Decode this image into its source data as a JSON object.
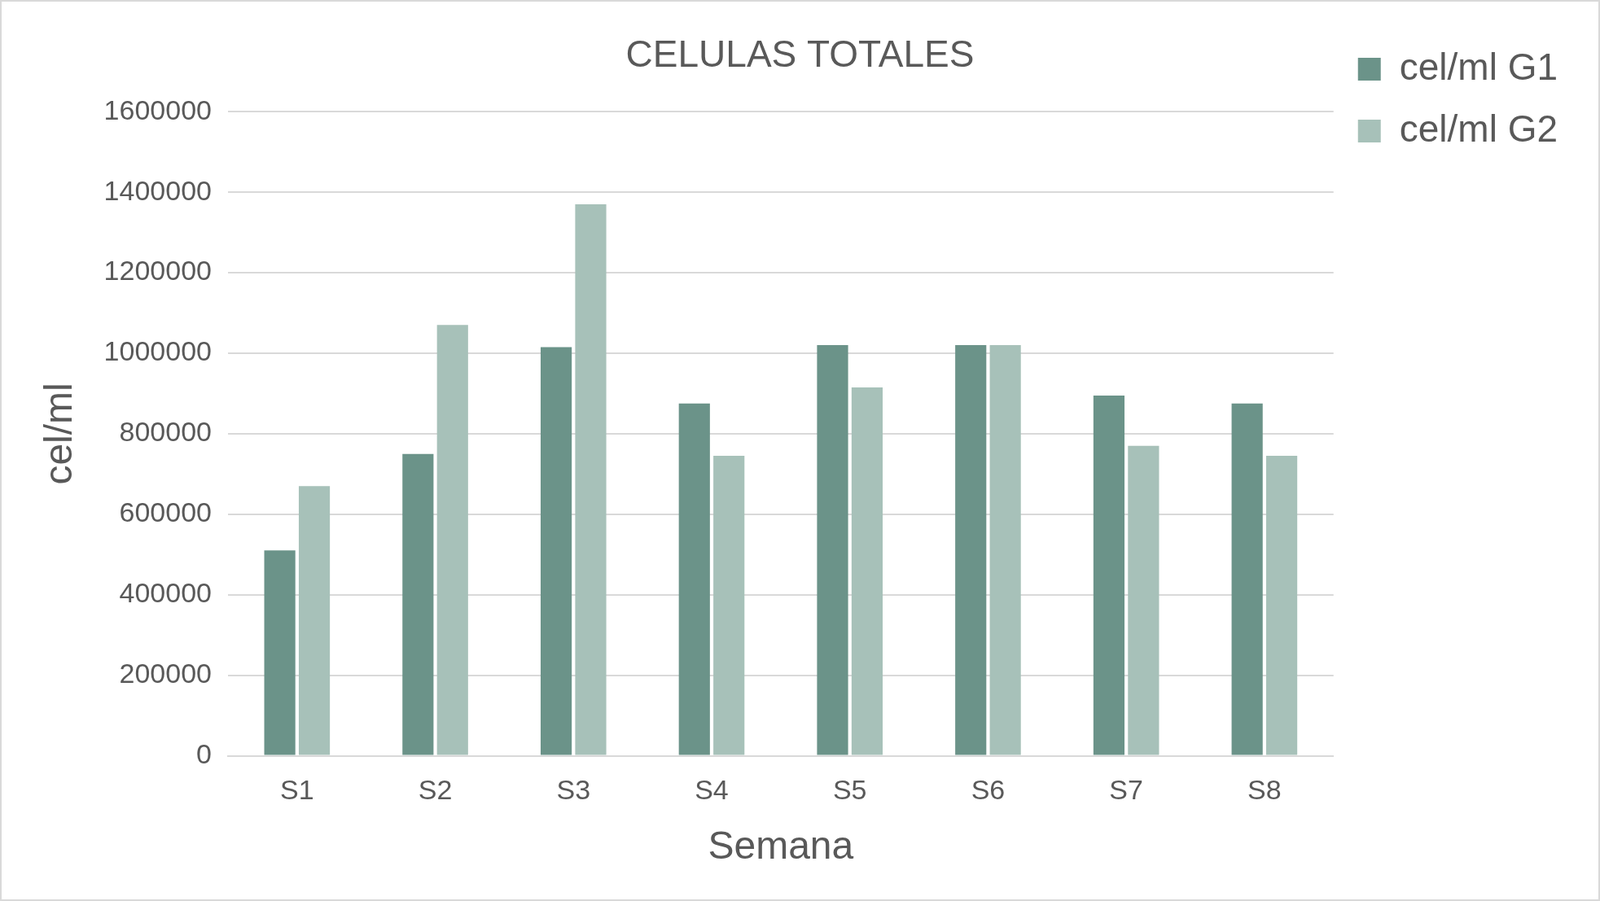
{
  "chart_data": {
    "type": "bar",
    "title": "CELULAS TOTALES",
    "x_label": "Semana",
    "y_label": "cel/ml",
    "categories": [
      "S1",
      "S2",
      "S3",
      "S4",
      "S5",
      "S6",
      "S7",
      "S8"
    ],
    "series": [
      {
        "name": "cel/ml G1",
        "color": "#6b9389",
        "values": [
          510000,
          750000,
          1015000,
          875000,
          1020000,
          1020000,
          895000,
          875000
        ]
      },
      {
        "name": "cel/ml G2",
        "color": "#a7c1b9",
        "values": [
          670000,
          1070000,
          1370000,
          745000,
          915000,
          1020000,
          770000,
          745000
        ]
      }
    ],
    "ylim": [
      0,
      1600000
    ],
    "yticks": [
      0,
      200000,
      400000,
      600000,
      800000,
      1000000,
      1200000,
      1400000,
      1600000
    ],
    "grid": true,
    "legend": "right"
  }
}
